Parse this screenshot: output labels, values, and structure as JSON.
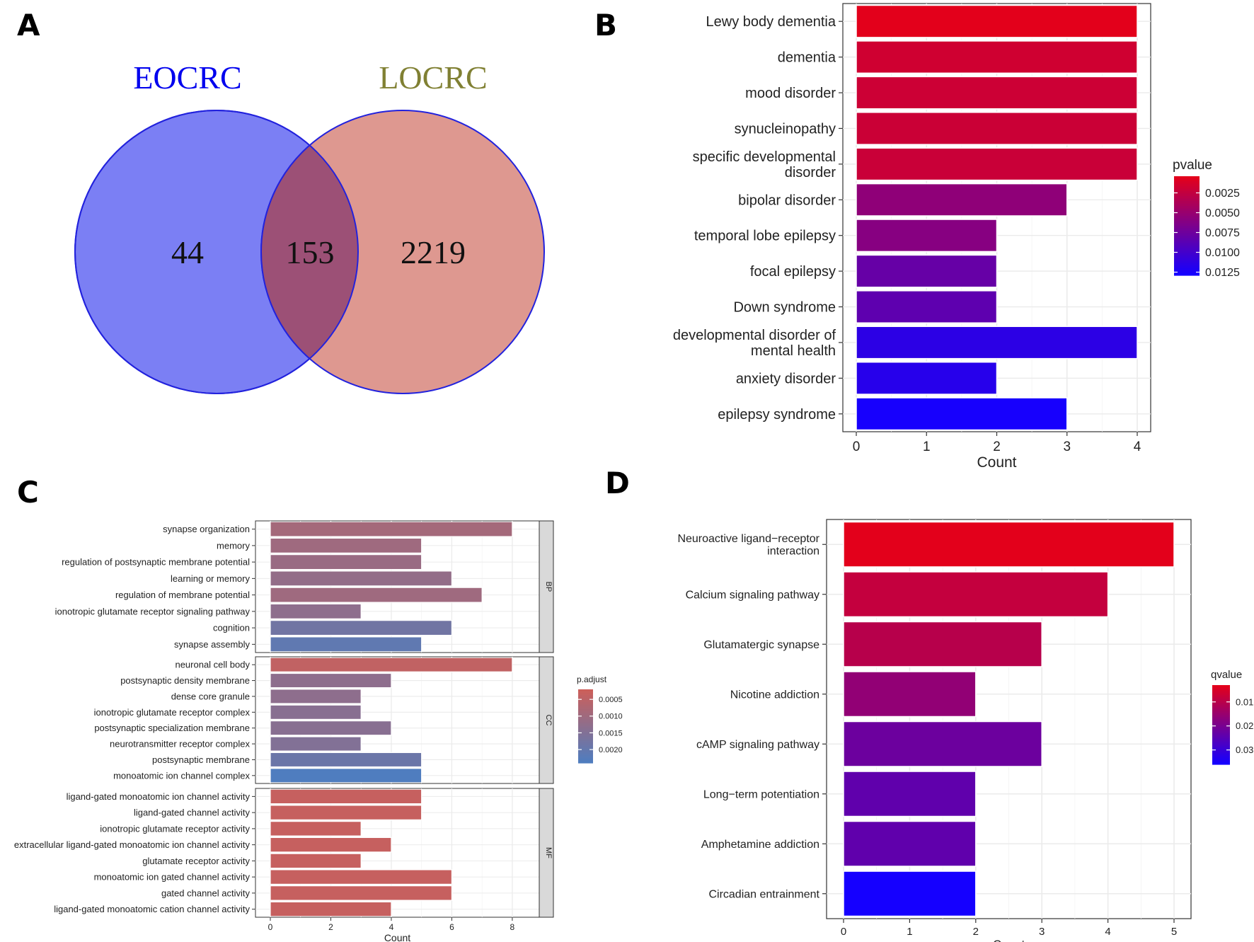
{
  "panel_labels": {
    "a": "A",
    "b": "B",
    "c": "C",
    "d": "D"
  },
  "chart_data": [
    {
      "type": "venn",
      "panel": "A",
      "sets": [
        {
          "name": "EOCRC",
          "only_count": "44",
          "color": "#0000ee",
          "fill": "#7b7ff4"
        },
        {
          "name": "LOCRC",
          "only_count": "2219",
          "color": "#808033",
          "fill": "#de9890"
        }
      ],
      "overlap_count": "153",
      "overlap_fill": "#9c5076"
    },
    {
      "type": "bar",
      "orientation": "horizontal",
      "panel": "B",
      "categories": [
        "Lewy body dementia",
        "dementia",
        "mood disorder",
        "synucleinopathy",
        "specific developmental\ndisorder",
        "bipolar disorder",
        "temporal lobe epilepsy",
        "focal epilepsy",
        "Down syndrome",
        "developmental disorder of\nmental health",
        "anxiety disorder",
        "epilepsy syndrome"
      ],
      "values": [
        4,
        4,
        4,
        4,
        4,
        3,
        2,
        2,
        2,
        4,
        2,
        3
      ],
      "pvalues": [
        0.0004,
        0.0016,
        0.0018,
        0.0019,
        0.002,
        0.0055,
        0.006,
        0.008,
        0.0085,
        0.0115,
        0.0118,
        0.0128
      ],
      "xlabel": "Count",
      "xlim": [
        0,
        4
      ],
      "xticks": [
        "0",
        "1",
        "2",
        "3",
        "4"
      ],
      "legend": {
        "title": "pvalue",
        "ticks": [
          "0.0025",
          "0.0050",
          "0.0075",
          "0.0100",
          "0.0125"
        ],
        "tick_values": [
          0.0025,
          0.005,
          0.0075,
          0.01,
          0.0125
        ],
        "range": [
          0.0004,
          0.0129
        ],
        "low_color": "#e3001b",
        "high_color": "#1500ff"
      }
    },
    {
      "type": "bar",
      "orientation": "horizontal",
      "panel": "C",
      "facets": [
        {
          "name": "BP",
          "categories": [
            "synapse organization",
            "memory",
            "regulation of postsynaptic membrane potential",
            "learning or memory",
            "regulation of membrane potential",
            "ionotropic glutamate receptor signaling pathway",
            "cognition",
            "synapse assembly"
          ],
          "values": [
            8,
            5,
            5,
            6,
            7,
            3,
            6,
            5
          ],
          "padj": [
            0.0009,
            0.001,
            0.0011,
            0.0012,
            0.001,
            0.0013,
            0.0018,
            0.0021
          ]
        },
        {
          "name": "CC",
          "categories": [
            "neuronal cell body",
            "postsynaptic density membrane",
            "dense core granule",
            "ionotropic glutamate receptor complex",
            "postsynaptic specialization membrane",
            "neurotransmitter receptor complex",
            "postsynaptic membrane",
            "monoatomic ion channel complex"
          ],
          "values": [
            8,
            4,
            3,
            3,
            4,
            3,
            5,
            5
          ],
          "padj": [
            0.0004,
            0.0013,
            0.0013,
            0.0014,
            0.0014,
            0.0015,
            0.0019,
            0.0024
          ]
        },
        {
          "name": "MF",
          "categories": [
            "ligand-gated monoatomic ion channel activity",
            "ligand-gated channel activity",
            "ionotropic glutamate receptor activity",
            "extracellular ligand-gated monoatomic ion channel activity",
            "glutamate receptor activity",
            "monoatomic ion gated channel activity",
            "gated channel activity",
            "ligand-gated monoatomic cation channel activity"
          ],
          "values": [
            5,
            5,
            3,
            4,
            3,
            6,
            6,
            4
          ],
          "padj": [
            0.0003,
            0.0003,
            0.0003,
            0.0003,
            0.0003,
            0.0003,
            0.0003,
            0.0003
          ]
        }
      ],
      "xlabel": "Count",
      "xlim": [
        0,
        8.4
      ],
      "xticks": [
        "0",
        "2",
        "4",
        "6",
        "8"
      ],
      "legend": {
        "title": "p.adjust",
        "ticks": [
          "0.0005",
          "0.0010",
          "0.0015",
          "0.0020"
        ],
        "tick_values": [
          0.0005,
          0.001,
          0.0015,
          0.002
        ],
        "range": [
          0.0002,
          0.0024
        ],
        "low_color": "#cc5f5a",
        "high_color": "#4f7dbf"
      }
    },
    {
      "type": "bar",
      "orientation": "horizontal",
      "panel": "D",
      "categories": [
        "Neuroactive ligand−receptor\ninteraction",
        "Calcium signaling pathway",
        "Glutamatergic synapse",
        "Nicotine addiction",
        "cAMP signaling pathway",
        "Long−term potentiation",
        "Amphetamine addiction",
        "Circadian entrainment"
      ],
      "values": [
        5,
        4,
        3,
        2,
        3,
        2,
        2,
        2
      ],
      "qvalues": [
        0.003,
        0.008,
        0.01,
        0.016,
        0.022,
        0.024,
        0.024,
        0.036
      ],
      "xlabel": "Count",
      "xlim": [
        0,
        5
      ],
      "xticks": [
        "0",
        "1",
        "2",
        "3",
        "4",
        "5"
      ],
      "legend": {
        "title": "qvalue",
        "ticks": [
          "0.01",
          "0.02",
          "0.03"
        ],
        "tick_values": [
          0.01,
          0.02,
          0.03
        ],
        "range": [
          0.003,
          0.036
        ],
        "low_color": "#e3001b",
        "high_color": "#1500ff"
      }
    }
  ]
}
